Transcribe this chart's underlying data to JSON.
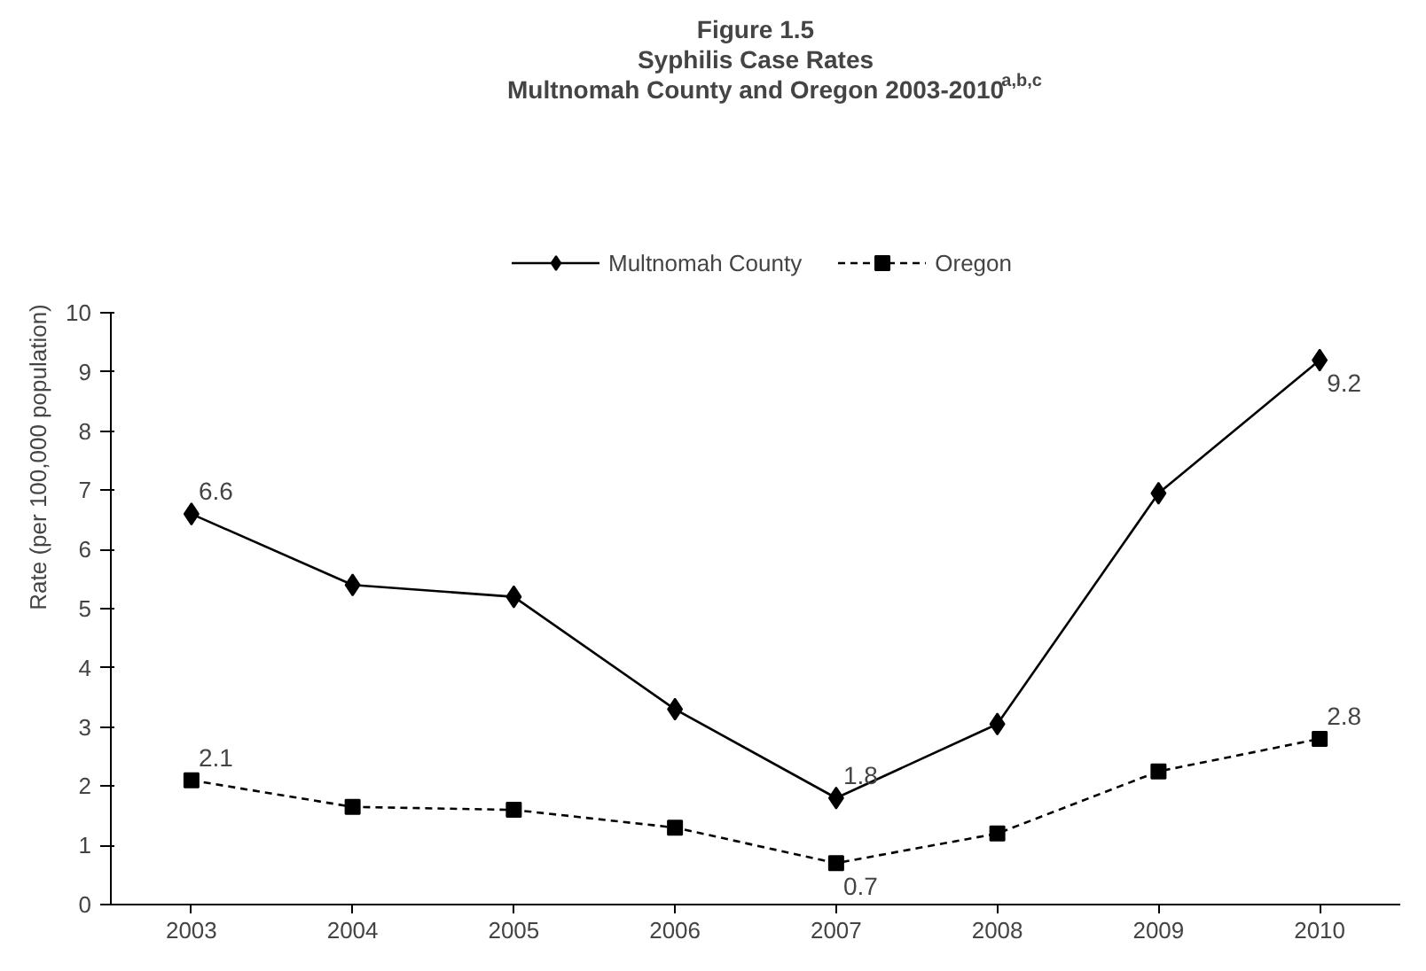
{
  "chart_data": {
    "type": "line",
    "title": "Figure 1.5\nSyphilis Case Rates\nMultnomah County and Oregon 2003-2010$^{a,b,c}$",
    "ylabel": "Rate (per 100,000 population)",
    "categories": [
      "2003",
      "2004",
      "2005",
      "2006",
      "2007",
      "2008",
      "2009",
      "2010"
    ],
    "series": [
      {
        "name": "Multnomah County",
        "color": "#000000",
        "marker": "diamond",
        "line_style": "solid",
        "values": [
          6.6,
          5.4,
          5.2,
          3.3,
          1.8,
          3.05,
          6.95,
          9.2
        ],
        "value_labels": [
          "6.6",
          null,
          null,
          null,
          "1.8",
          null,
          null,
          "9.2"
        ]
      },
      {
        "name": "Oregon",
        "color": "#000000",
        "marker": "square",
        "line_style": "dashed",
        "values": [
          2.1,
          1.65,
          1.6,
          1.3,
          0.7,
          1.2,
          2.25,
          2.8
        ],
        "value_labels": [
          "2.1",
          null,
          null,
          null,
          "0.7",
          null,
          null,
          "2.8"
        ]
      }
    ],
    "ylim": [
      0,
      10
    ],
    "yticks": [
      0,
      1,
      2,
      3,
      4,
      5,
      6,
      7,
      8,
      9,
      10
    ],
    "grid": false,
    "legend": "top"
  }
}
